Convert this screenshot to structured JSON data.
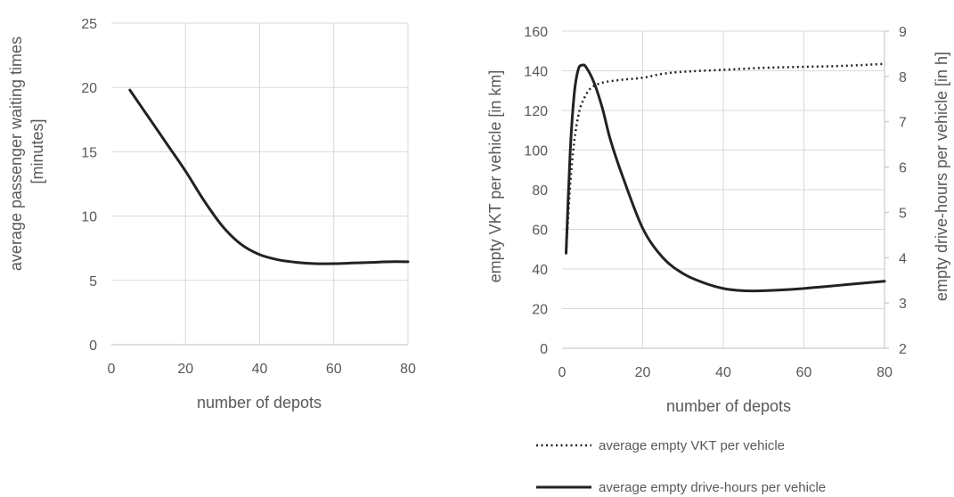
{
  "chart_data": [
    {
      "type": "line",
      "title": "",
      "xlabel": "number of depots",
      "ylabel": "average passenger waiting times [minutes]",
      "xlim": [
        0,
        80
      ],
      "ylim": [
        0,
        25
      ],
      "xticks": [
        "0",
        "20",
        "40",
        "60",
        "80"
      ],
      "yticks": [
        "0",
        "5",
        "10",
        "15",
        "20",
        "25"
      ],
      "grid": true,
      "series": [
        {
          "style": "solid",
          "color": "#222222",
          "x": [
            5,
            10,
            15,
            20,
            25,
            30,
            35,
            40,
            45,
            50,
            55,
            60,
            65,
            70,
            75,
            80
          ],
          "y": [
            19.8,
            17.7,
            15.6,
            13.5,
            11.2,
            9.2,
            7.8,
            7.0,
            6.6,
            6.4,
            6.3,
            6.3,
            6.35,
            6.4,
            6.45,
            6.45
          ]
        }
      ]
    },
    {
      "type": "line",
      "title": "",
      "xlabel": "number of depots",
      "ylabel": "empty VKT per vehicle [in km]",
      "y2label": "empty drive-hours per vehicle [in h]",
      "xlim": [
        0,
        80
      ],
      "ylim": [
        0,
        160
      ],
      "y2lim": [
        2,
        9
      ],
      "xticks": [
        "0",
        "20",
        "40",
        "60",
        "80"
      ],
      "yticks": [
        "0",
        "20",
        "40",
        "60",
        "80",
        "100",
        "120",
        "140",
        "160"
      ],
      "y2ticks": [
        "2",
        "3",
        "4",
        "5",
        "6",
        "7",
        "8",
        "9"
      ],
      "grid": true,
      "legend_position": "bottom",
      "series": [
        {
          "name": "average empty VKT per vehicle",
          "axis": "left",
          "style": "dotted",
          "color": "#222222",
          "x": [
            1,
            2,
            3,
            4,
            5,
            7,
            10,
            15,
            20,
            25,
            30,
            40,
            50,
            60,
            70,
            80
          ],
          "y": [
            48,
            82,
            104,
            117,
            124,
            131,
            134,
            135.5,
            136.5,
            138.5,
            139.5,
            140.5,
            141.5,
            142,
            142.5,
            143.5
          ]
        },
        {
          "name": "average empty drive-hours per vehicle",
          "axis": "right",
          "style": "solid",
          "color": "#222222",
          "x": [
            1,
            2,
            3,
            4,
            5,
            6,
            8,
            10,
            12,
            15,
            20,
            25,
            30,
            35,
            40,
            45,
            50,
            55,
            60,
            65,
            70,
            75,
            80
          ],
          "y": [
            4.1,
            6.3,
            7.6,
            8.15,
            8.25,
            8.2,
            7.85,
            7.3,
            6.6,
            5.8,
            4.65,
            4.0,
            3.65,
            3.45,
            3.32,
            3.27,
            3.27,
            3.29,
            3.32,
            3.36,
            3.4,
            3.44,
            3.48
          ]
        }
      ]
    }
  ]
}
